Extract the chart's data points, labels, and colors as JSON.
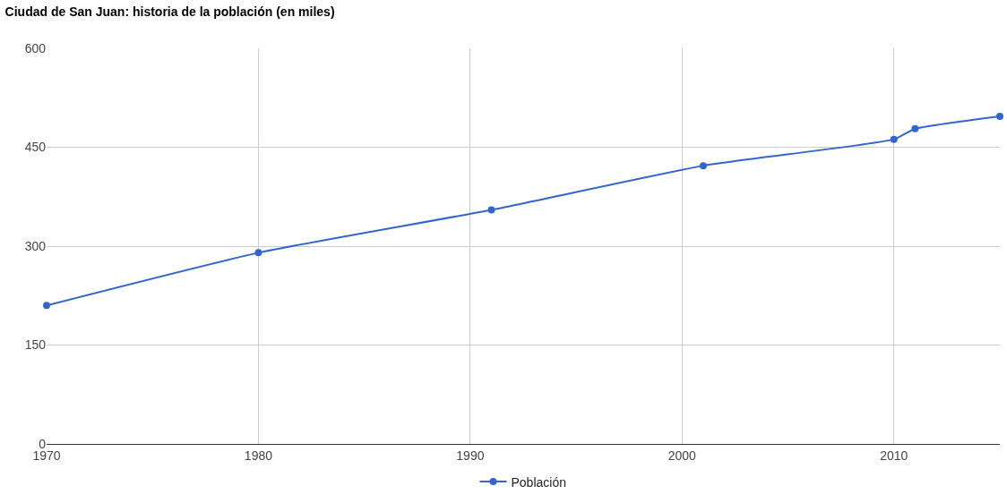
{
  "chart_data": {
    "type": "line",
    "title": "Ciudad de San Juan: historia de la población (en miles)",
    "x": [
      1970,
      1980,
      1991,
      2001,
      2010,
      2011,
      2015
    ],
    "series": [
      {
        "name": "Población",
        "color": "#3366cc",
        "values": [
          210,
          290,
          355,
          422,
          462,
          478,
          497
        ]
      }
    ],
    "xlim": [
      1970,
      2015
    ],
    "xticks": [
      1970,
      1980,
      1990,
      2000,
      2010
    ],
    "ylim": [
      0,
      600
    ],
    "yticks": [
      0,
      150,
      300,
      450,
      600
    ],
    "grid": true,
    "legend": "bottom",
    "marker": "circle",
    "line_style": "solid"
  }
}
